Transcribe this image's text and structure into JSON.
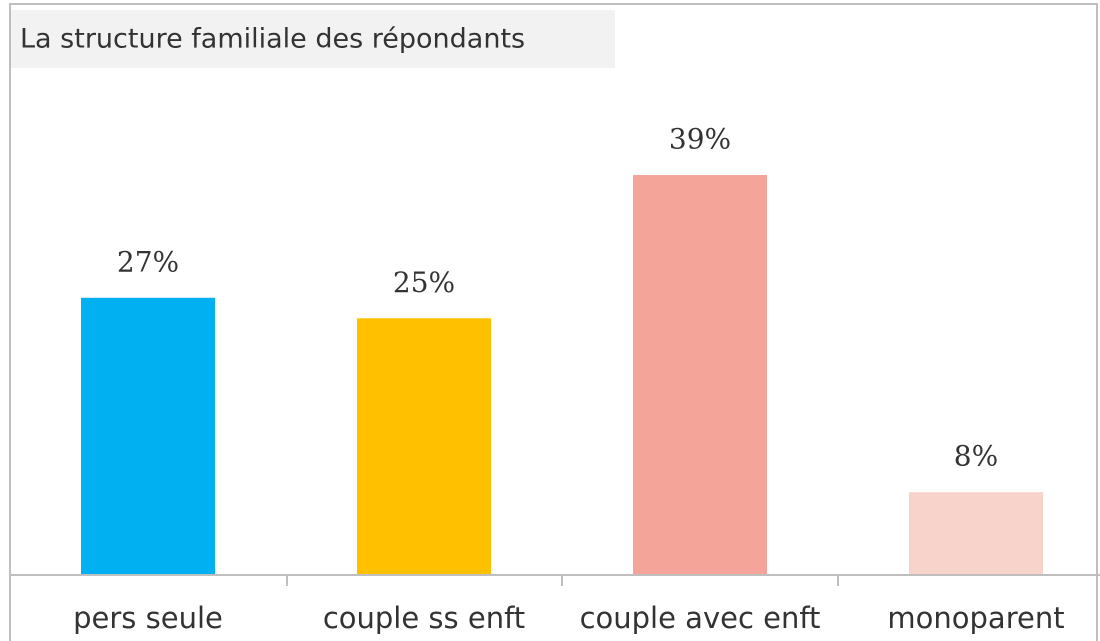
{
  "chart_data": {
    "type": "bar",
    "title": "La structure familiale des répondants",
    "categories": [
      "pers seule",
      "couple ss enft",
      "couple avec enft",
      "monoparent"
    ],
    "values": [
      27,
      25,
      39,
      8
    ],
    "value_labels": [
      "27%",
      "25%",
      "39%",
      "8%"
    ],
    "colors": [
      "#00b0f0",
      "#ffc000",
      "#f4a498",
      "#f8d3cc"
    ]
  }
}
